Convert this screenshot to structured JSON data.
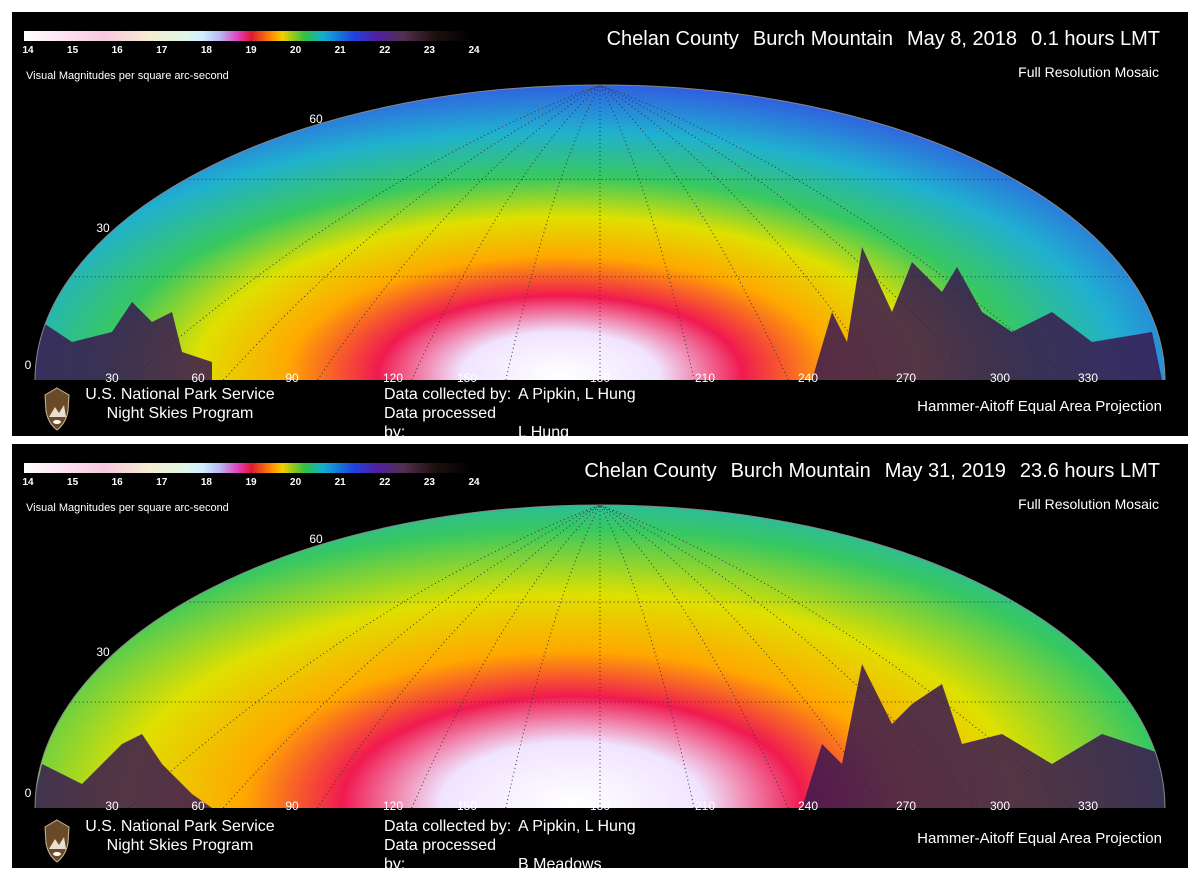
{
  "panels": [
    {
      "title": {
        "county": "Chelan County",
        "site": "Burch Mountain",
        "date": "May 8, 2018",
        "time": "0.1 hours LMT"
      },
      "subtitle": "Full Resolution Mosaic",
      "credits": {
        "collected_label": "Data collected by:",
        "collected_value": "A Pipkin, L Hung",
        "processed_label": "Data processed by:",
        "processed_value": "L Hung"
      }
    },
    {
      "title": {
        "county": "Chelan County",
        "site": "Burch Mountain",
        "date": "May 31, 2019",
        "time": "23.6 hours LMT"
      },
      "subtitle": "Full Resolution Mosaic",
      "credits": {
        "collected_label": "Data collected by:",
        "collected_value": "A Pipkin, L Hung",
        "processed_label": "Data processed by:",
        "processed_value": "B Meadows"
      }
    }
  ],
  "org": {
    "line1": "U.S. National Park Service",
    "line2": "Night Skies Program"
  },
  "projection": "Hammer-Aitoff Equal Area Projection",
  "chart_data": {
    "type": "heatmap",
    "colorbar": {
      "label": "Visual Magnitudes per square arc-second",
      "range": [
        14,
        24
      ],
      "ticks": [
        "14",
        "15",
        "16",
        "17",
        "18",
        "19",
        "20",
        "21",
        "22",
        "23",
        "24"
      ],
      "colors": [
        "#ffffff",
        "#f7c8e0",
        "#e0f6e8",
        "#b8b8f0",
        "#e01830",
        "#f0d000",
        "#30c040",
        "#10b0d0",
        "#2040e0",
        "#5020a0",
        "#000000"
      ]
    },
    "x_tick_labels": [
      "30",
      "60",
      "90",
      "120",
      "150",
      "180",
      "210",
      "240",
      "270",
      "300",
      "330"
    ],
    "y_tick_labels": [
      "0",
      "30",
      "60"
    ],
    "grid": true
  }
}
